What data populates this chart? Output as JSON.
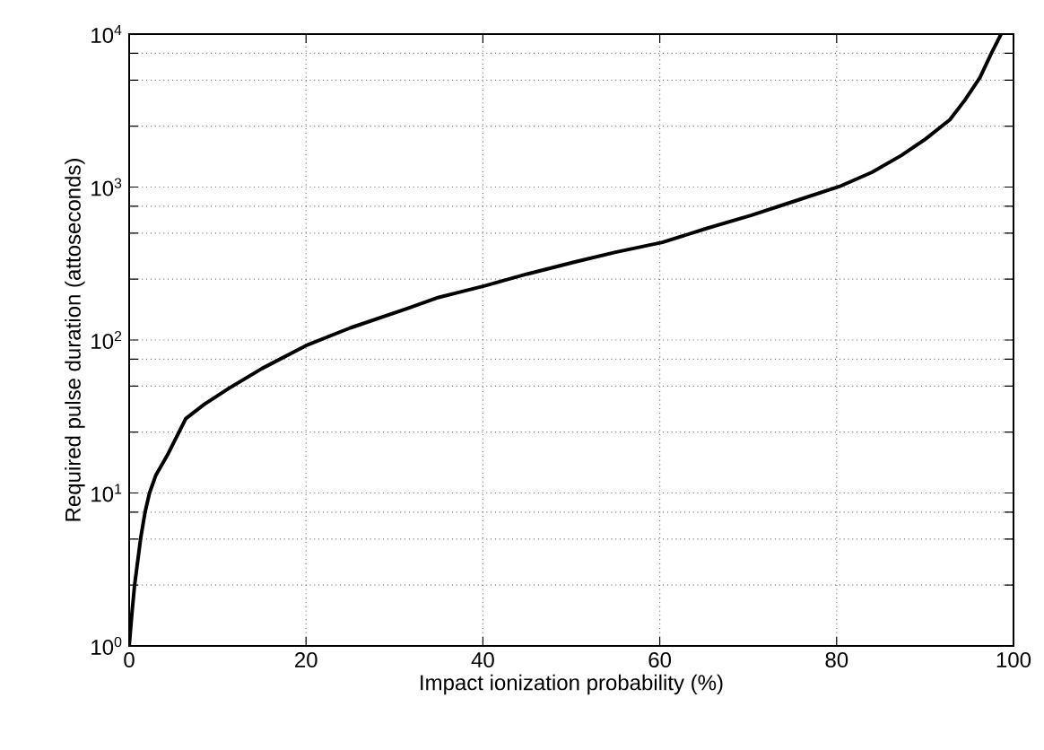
{
  "chart_data": {
    "type": "line",
    "xlabel": "Impact ionization probability (%)",
    "ylabel": "Required pulse duration (attoseconds)",
    "x": [
      0,
      0.3,
      0.6,
      1.3,
      1.8,
      2.3,
      3,
      4.35,
      6.4,
      8.5,
      11.2,
      15,
      20,
      25,
      31.6,
      35,
      40.2,
      45,
      50.6,
      55,
      60.3,
      65,
      70.3,
      75,
      80.3,
      84,
      87.3,
      90,
      92.8,
      94.5,
      96.2,
      97.5,
      98.6
    ],
    "series": [
      {
        "color": "#000000",
        "values": [
          1,
          1.6,
          2.46,
          5.06,
          7.5,
          10,
          13,
          17.8,
          30.6,
          38,
          48,
          65,
          92,
          120,
          162,
          190,
          226,
          270,
          326,
          375,
          435,
          530,
          653,
          800,
          1007,
          1250,
          1607,
          2050,
          2755,
          3700,
          5190,
          7500,
          10000
        ]
      }
    ],
    "xlim": [
      0,
      100
    ],
    "xticks": [
      0,
      20,
      40,
      60,
      80,
      100
    ],
    "ylim": [
      1,
      10000
    ],
    "yticks": [
      {
        "value": 1,
        "label": "10$^{0}$"
      },
      {
        "value": 2.5,
        "label": null
      },
      {
        "value": 5,
        "label": null
      },
      {
        "value": 7.5,
        "label": null
      },
      {
        "value": 10,
        "label": "10$^{1}$"
      },
      {
        "value": 25,
        "label": null
      },
      {
        "value": 50,
        "label": null
      },
      {
        "value": 75,
        "label": null
      },
      {
        "value": 100,
        "label": "10$^{2}$"
      },
      {
        "value": 250,
        "label": null
      },
      {
        "value": 500,
        "label": null
      },
      {
        "value": 750,
        "label": null
      },
      {
        "value": 1000,
        "label": "10$^{3}$"
      },
      {
        "value": 2500,
        "label": null
      },
      {
        "value": 5000,
        "label": null
      },
      {
        "value": 7500,
        "label": null
      },
      {
        "value": 10000,
        "label": "10$^{4}$"
      }
    ],
    "log": "y",
    "grid": true,
    "line_style": "solid"
  }
}
